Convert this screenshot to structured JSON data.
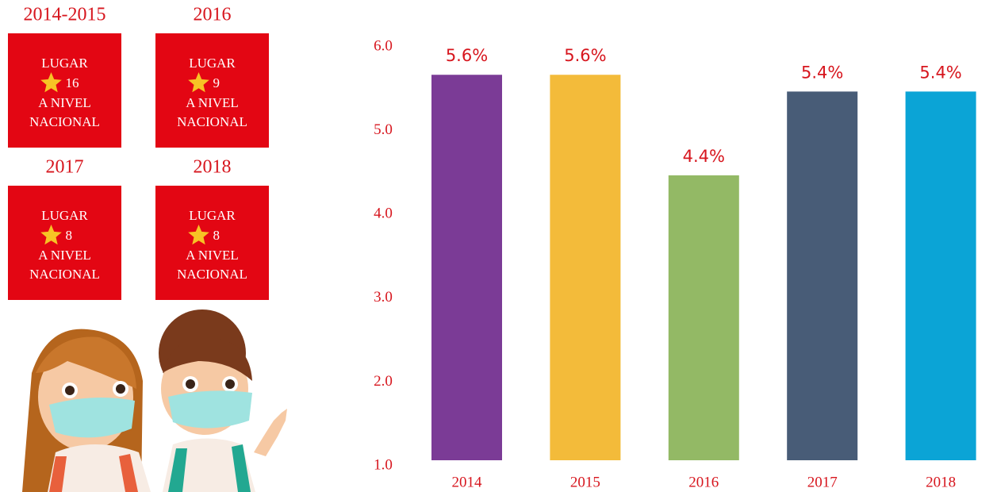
{
  "ranking_cards": [
    {
      "period": "2014-2015",
      "label": "LUGAR",
      "rank": 16,
      "level": "A NIVEL",
      "scope": "NACIONAL"
    },
    {
      "period": "2016",
      "label": "LUGAR",
      "rank": 9,
      "level": "A NIVEL",
      "scope": "NACIONAL"
    },
    {
      "period": "2017",
      "label": "LUGAR",
      "rank": 8,
      "level": "A NIVEL",
      "scope": "NACIONAL"
    },
    {
      "period": "2018",
      "label": "LUGAR",
      "rank": 8,
      "level": "A NIVEL",
      "scope": "NACIONAL"
    }
  ],
  "chart_data": {
    "type": "bar",
    "categories": [
      "2014",
      "2015",
      "2016",
      "2017",
      "2018"
    ],
    "values": [
      5.6,
      5.6,
      4.4,
      5.4,
      5.4
    ],
    "value_labels": [
      "5.6%",
      "5.6%",
      "4.4%",
      "5.4%",
      "5.4%"
    ],
    "colors": [
      "#7b3b96",
      "#f3bb3a",
      "#93b965",
      "#485c77",
      "#0ba4d6"
    ],
    "ylim": [
      1,
      6
    ],
    "yticks": [
      {
        "value": 1,
        "label": "1.0"
      },
      {
        "value": 2,
        "label": "2.0"
      },
      {
        "value": 3,
        "label": "3.0"
      },
      {
        "value": 4,
        "label": "4.0"
      },
      {
        "value": 5,
        "label": "5.0"
      },
      {
        "value": 6,
        "label": "6.0"
      }
    ],
    "grid": false
  }
}
